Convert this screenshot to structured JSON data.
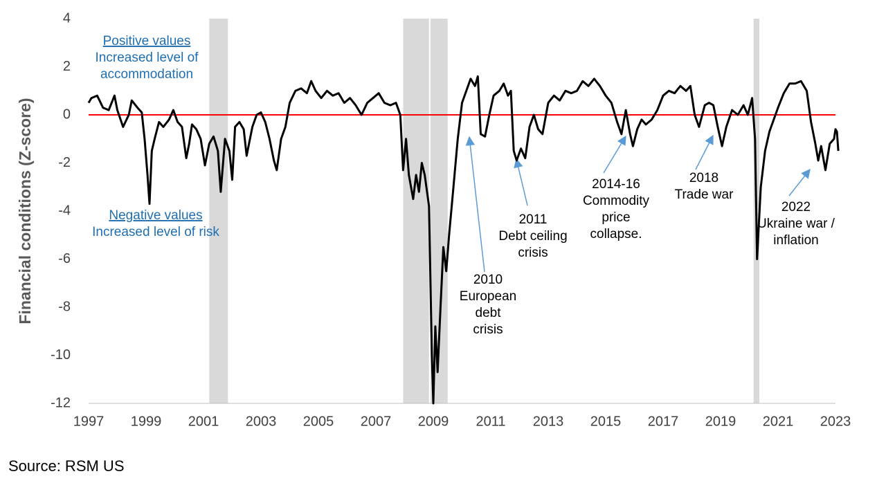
{
  "chart_data": {
    "type": "line",
    "y_label": "Financial conditions (Z-score)",
    "source": "Source: RSM US",
    "xlim": [
      1997,
      2023
    ],
    "xticks": [
      1997,
      1999,
      2001,
      2003,
      2005,
      2007,
      2009,
      2011,
      2013,
      2015,
      2017,
      2019,
      2021,
      2023
    ],
    "ylim": [
      -12,
      4
    ],
    "yticks": [
      -12,
      -10,
      -8,
      -6,
      -4,
      -2,
      0,
      2,
      4
    ],
    "color": "#000000",
    "reference_line": {
      "value": 0,
      "color": "#ff0000"
    },
    "recessions": [
      [
        2001.2,
        2001.85
      ],
      [
        2007.95,
        2008.85
      ],
      [
        2008.9,
        2009.5
      ],
      [
        2020.15,
        2020.35
      ]
    ],
    "recession_color": "#d9d9d9",
    "x": [
      1997.0,
      1997.1,
      1997.3,
      1997.5,
      1997.7,
      1997.9,
      1998.0,
      1998.2,
      1998.4,
      1998.5,
      1998.7,
      1998.85,
      1998.95,
      1999.05,
      1999.12,
      1999.2,
      1999.3,
      1999.45,
      1999.6,
      1999.8,
      1999.95,
      2000.1,
      2000.25,
      2000.4,
      2000.5,
      2000.6,
      2000.75,
      2000.9,
      2001.05,
      2001.2,
      2001.35,
      2001.5,
      2001.6,
      2001.75,
      2001.9,
      2002.0,
      2002.1,
      2002.25,
      2002.4,
      2002.5,
      2002.7,
      2002.85,
      2003.0,
      2003.15,
      2003.3,
      2003.45,
      2003.55,
      2003.7,
      2003.85,
      2004.0,
      2004.2,
      2004.4,
      2004.6,
      2004.75,
      2004.9,
      2005.1,
      2005.3,
      2005.5,
      2005.7,
      2005.9,
      2006.1,
      2006.3,
      2006.5,
      2006.7,
      2006.9,
      2007.1,
      2007.3,
      2007.5,
      2007.7,
      2007.85,
      2007.95,
      2008.05,
      2008.15,
      2008.3,
      2008.4,
      2008.5,
      2008.6,
      2008.7,
      2008.85,
      2008.95,
      2009.0,
      2009.07,
      2009.15,
      2009.25,
      2009.35,
      2009.45,
      2009.55,
      2009.7,
      2009.85,
      2010.0,
      2010.15,
      2010.3,
      2010.45,
      2010.55,
      2010.65,
      2010.8,
      2010.95,
      2011.1,
      2011.3,
      2011.45,
      2011.6,
      2011.7,
      2011.8,
      2011.9,
      2012.05,
      2012.2,
      2012.35,
      2012.5,
      2012.65,
      2012.8,
      2013.0,
      2013.2,
      2013.4,
      2013.6,
      2013.8,
      2014.0,
      2014.2,
      2014.4,
      2014.6,
      2014.8,
      2015.0,
      2015.2,
      2015.4,
      2015.55,
      2015.7,
      2015.85,
      2015.95,
      2016.1,
      2016.25,
      2016.4,
      2016.6,
      2016.8,
      2017.0,
      2017.2,
      2017.4,
      2017.6,
      2017.8,
      2017.95,
      2018.1,
      2018.25,
      2018.45,
      2018.6,
      2018.75,
      2018.9,
      2019.05,
      2019.2,
      2019.4,
      2019.6,
      2019.8,
      2019.95,
      2020.1,
      2020.2,
      2020.27,
      2020.4,
      2020.55,
      2020.7,
      2020.85,
      2021.0,
      2021.2,
      2021.4,
      2021.6,
      2021.8,
      2022.0,
      2022.15,
      2022.3,
      2022.4,
      2022.5,
      2022.65,
      2022.8,
      2022.95,
      2023.0,
      2023.05,
      2023.1
    ],
    "values": [
      0.5,
      0.7,
      0.8,
      0.3,
      0.2,
      0.8,
      0.2,
      -0.5,
      0.0,
      0.6,
      0.3,
      0.1,
      -1.0,
      -2.5,
      -3.7,
      -1.5,
      -1.0,
      -0.3,
      -0.5,
      -0.2,
      0.2,
      -0.3,
      -0.5,
      -1.8,
      -1.2,
      -0.4,
      -0.6,
      -1.0,
      -2.1,
      -1.2,
      -0.9,
      -1.5,
      -3.2,
      -1.0,
      -1.5,
      -2.7,
      -0.5,
      -0.3,
      -0.6,
      -1.7,
      -0.5,
      0.0,
      0.1,
      -0.3,
      -1.0,
      -1.9,
      -2.3,
      -1.0,
      -0.5,
      0.5,
      1.0,
      1.1,
      0.9,
      1.4,
      1.0,
      0.7,
      1.0,
      0.8,
      0.9,
      0.5,
      0.7,
      0.4,
      0.0,
      0.5,
      0.7,
      0.9,
      0.5,
      0.4,
      0.5,
      0.0,
      -2.3,
      -1.0,
      -2.5,
      -3.5,
      -2.5,
      -3.2,
      -2.0,
      -2.5,
      -3.8,
      -10,
      -12,
      -8.8,
      -10.7,
      -8,
      -5.5,
      -6.5,
      -5.0,
      -3.0,
      -1.0,
      0.5,
      1.0,
      1.5,
      1.2,
      1.6,
      -0.8,
      -0.9,
      0.0,
      0.8,
      1.0,
      1.3,
      0.8,
      1.0,
      -1.5,
      -1.9,
      -1.4,
      -1.8,
      -0.5,
      0.0,
      -0.6,
      -0.8,
      0.5,
      0.8,
      0.6,
      1.0,
      0.9,
      1.0,
      1.4,
      1.2,
      1.5,
      1.2,
      0.8,
      0.5,
      -0.3,
      -0.8,
      0.2,
      -0.8,
      -1.3,
      -0.6,
      -0.2,
      -0.4,
      -0.2,
      0.2,
      0.8,
      1.0,
      0.9,
      1.2,
      1.0,
      1.2,
      0.0,
      -0.5,
      0.4,
      0.5,
      0.4,
      -0.5,
      -1.3,
      -0.5,
      0.2,
      0.0,
      0.4,
      0.0,
      0.7,
      -1.0,
      -6.0,
      -3.0,
      -1.5,
      -0.7,
      -0.2,
      0.3,
      0.9,
      1.3,
      1.3,
      1.4,
      1.0,
      -0.3,
      -1.2,
      -1.9,
      -1.3,
      -2.3,
      -1.2,
      -1.0,
      -0.6,
      -0.7,
      -1.5
    ],
    "legend_notes": [
      [
        "Positive values",
        "Increased level of",
        "accommodation"
      ],
      [
        "Negative values",
        "Increased level of risk"
      ]
    ],
    "annotations": [
      [
        "2010",
        "European",
        "debt",
        "crisis"
      ],
      [
        "2011",
        "Debt ceiling",
        "crisis"
      ],
      [
        "2014-16",
        "Commodity",
        "price",
        "collapse."
      ],
      [
        "2018",
        "Trade war"
      ],
      [
        "2022",
        "Ukraine war /",
        "inflation"
      ]
    ]
  }
}
